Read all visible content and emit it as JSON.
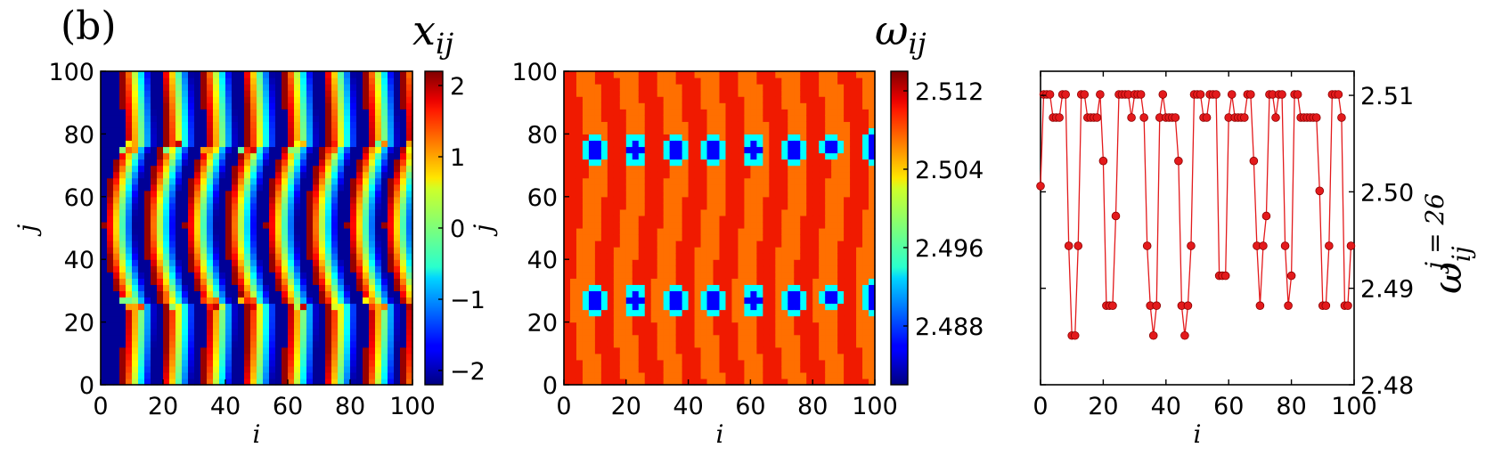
{
  "panel_label": "(b)",
  "chart_data": [
    {
      "type": "heatmap",
      "id": "x",
      "title": "x",
      "title_subscript": "ij",
      "xlabel": "i",
      "ylabel": "j",
      "xlim": [
        0,
        100
      ],
      "ylim": [
        0,
        100
      ],
      "xticks": [
        "0",
        "20",
        "40",
        "60",
        "80",
        "100"
      ],
      "yticks": [
        "0",
        "20",
        "40",
        "60",
        "80",
        "100"
      ],
      "colormap": "jet",
      "colorbar_range": [
        -2.2,
        2.2
      ],
      "colorbar_ticks": [
        "−2",
        "−1",
        "0",
        "1",
        "2"
      ],
      "colorbar_tick_values": [
        -2,
        -1,
        0,
        1,
        2
      ],
      "wave_fronts_i": [
        7,
        20,
        33,
        46,
        59,
        72,
        85,
        97
      ],
      "defect_rows_j": [
        26,
        76
      ]
    },
    {
      "type": "heatmap",
      "id": "omega",
      "title": "ω",
      "title_subscript": "ij",
      "xlabel": "i",
      "ylabel": "j",
      "xlim": [
        0,
        100
      ],
      "ylim": [
        0,
        100
      ],
      "xticks": [
        "0",
        "20",
        "40",
        "60",
        "80",
        "100"
      ],
      "yticks": [
        "0",
        "20",
        "40",
        "60",
        "80",
        "100"
      ],
      "colormap": "jet",
      "colorbar_range": [
        2.482,
        2.514
      ],
      "colorbar_ticks": [
        "2.488",
        "2.496",
        "2.504",
        "2.512"
      ],
      "colorbar_tick_values": [
        2.488,
        2.496,
        2.504,
        2.512
      ],
      "band_values": [
        2.5085,
        2.5115
      ],
      "defect_centers": [
        [
          10,
          75
        ],
        [
          23,
          75
        ],
        [
          36,
          75
        ],
        [
          48,
          75
        ],
        [
          61,
          75
        ],
        [
          74,
          75
        ],
        [
          86,
          76
        ],
        [
          99,
          76
        ],
        [
          10,
          27
        ],
        [
          23,
          27
        ],
        [
          36,
          27
        ],
        [
          48,
          27
        ],
        [
          61,
          27
        ],
        [
          74,
          27
        ],
        [
          86,
          28
        ],
        [
          99,
          28
        ]
      ]
    },
    {
      "type": "line",
      "id": "profile",
      "xlabel": "i",
      "ylabel": "ω",
      "ylabel_subscript": "ij",
      "ylabel_superscript": "j = 26",
      "xlim": [
        0,
        100
      ],
      "ylim": [
        2.48,
        2.5125
      ],
      "xticks": [
        "0",
        "20",
        "40",
        "60",
        "80",
        "100"
      ],
      "yticks": [
        "2.48",
        "2.49",
        "2.50",
        "2.51"
      ],
      "ytick_values": [
        2.48,
        2.49,
        2.5,
        2.51
      ],
      "color": "#e31a1c",
      "series": [
        {
          "name": "ω at j = 26",
          "x": [
            0,
            1,
            2,
            3,
            4,
            5,
            6,
            7,
            8,
            9,
            10,
            11,
            12,
            13,
            14,
            15,
            16,
            17,
            18,
            19,
            20,
            21,
            22,
            23,
            24,
            25,
            26,
            27,
            28,
            29,
            30,
            31,
            32,
            33,
            34,
            35,
            36,
            37,
            38,
            39,
            40,
            41,
            42,
            43,
            44,
            45,
            46,
            47,
            48,
            49,
            50,
            51,
            52,
            53,
            54,
            55,
            56,
            57,
            58,
            59,
            60,
            61,
            62,
            63,
            64,
            65,
            66,
            67,
            68,
            69,
            70,
            71,
            72,
            73,
            74,
            75,
            76,
            77,
            78,
            79,
            80,
            81,
            82,
            83,
            84,
            85,
            86,
            87,
            88,
            89,
            90,
            91,
            92,
            93,
            94,
            95,
            96,
            97,
            98,
            99
          ],
          "values": [
            2.5006,
            2.5101,
            2.5101,
            2.5101,
            2.5077,
            2.5077,
            2.5077,
            2.5101,
            2.5101,
            2.4944,
            2.4851,
            2.4851,
            2.4944,
            2.5101,
            2.5101,
            2.5077,
            2.5077,
            2.5077,
            2.5077,
            2.5101,
            2.5032,
            2.4882,
            2.4882,
            2.4882,
            2.4975,
            2.5101,
            2.5101,
            2.5101,
            2.5101,
            2.5077,
            2.5101,
            2.5101,
            2.5101,
            2.5077,
            2.4944,
            2.4882,
            2.4851,
            2.4882,
            2.5077,
            2.5101,
            2.5077,
            2.5077,
            2.5077,
            2.5077,
            2.5032,
            2.4882,
            2.4851,
            2.4882,
            2.4944,
            2.5101,
            2.5101,
            2.5101,
            2.5077,
            2.5077,
            2.5101,
            2.5101,
            2.5101,
            2.4913,
            2.4913,
            2.4913,
            2.5077,
            2.5101,
            2.5077,
            2.5077,
            2.5077,
            2.5077,
            2.5101,
            2.5101,
            2.5032,
            2.4944,
            2.4882,
            2.4944,
            2.4975,
            2.5101,
            2.5101,
            2.5077,
            2.5101,
            2.5101,
            2.4944,
            2.4882,
            2.4913,
            2.5101,
            2.5101,
            2.5077,
            2.5077,
            2.5077,
            2.5077,
            2.5077,
            2.5077,
            2.5001,
            2.4882,
            2.4882,
            2.4944,
            2.5101,
            2.5101,
            2.5101,
            2.5077,
            2.4882,
            2.4882,
            2.4944
          ]
        }
      ]
    }
  ]
}
